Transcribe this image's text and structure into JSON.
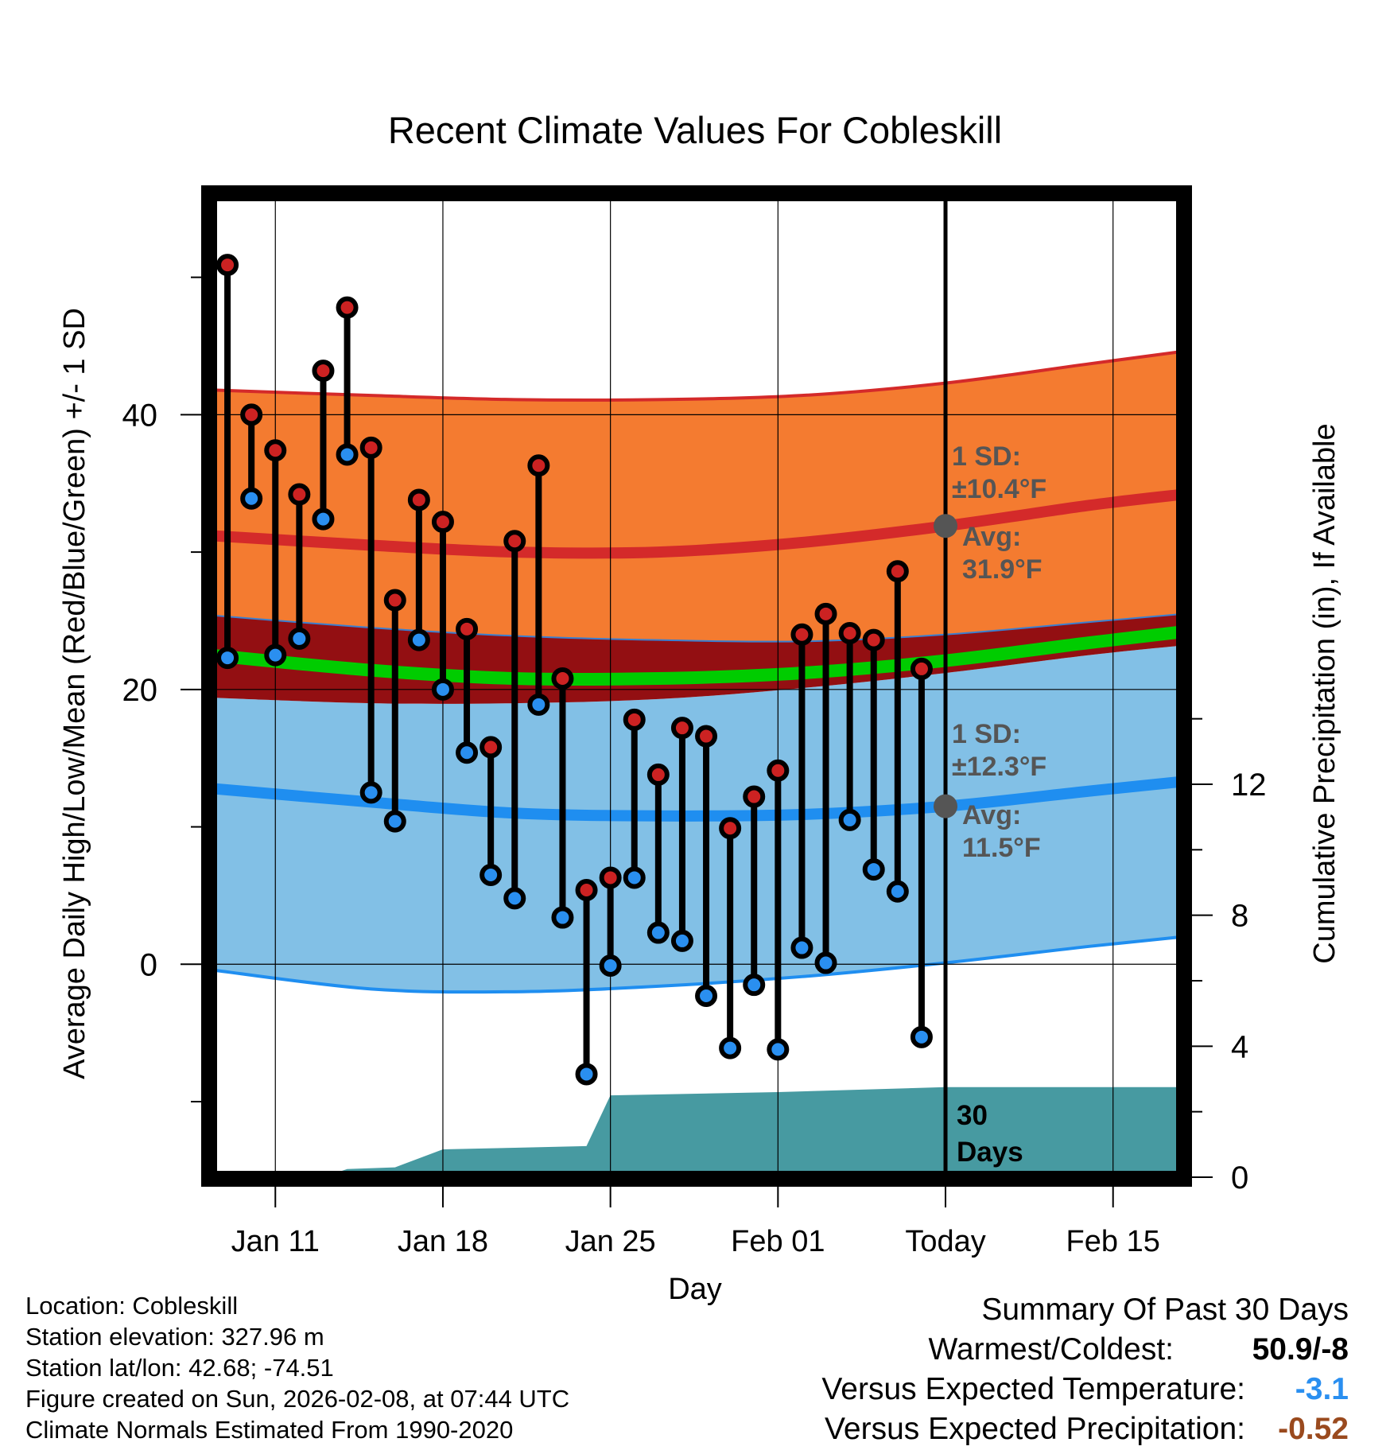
{
  "chart_data": {
    "type": "line",
    "title": "Recent Climate Values For Cobleskill",
    "xlabel": "Day",
    "ylabel": "Average Daily High/Low/Mean (Red/Blue/Green) +/- 1 SD",
    "y2label": "Cumulative Precipitation (in), If Available",
    "ylim": [
      -15.5,
      56
    ],
    "y2lim": [
      0,
      30
    ],
    "y_ticks": [
      "0",
      "20",
      "40"
    ],
    "y2_ticks": [
      "0",
      "4",
      "8",
      "12"
    ],
    "x_ticks": [
      "Jan 11",
      "Jan 18",
      "Jan 25",
      "Feb 01",
      "Today",
      "Feb 15"
    ],
    "x_tick_days": [
      0,
      7,
      14,
      21,
      28,
      35
    ],
    "xlim": [
      -2.7,
      37.9
    ],
    "normals": {
      "days": [
        -2.7,
        4,
        10,
        16,
        22,
        28,
        34,
        37.9
      ],
      "high_plus_sd": [
        41.8,
        41.4,
        41.1,
        41.1,
        41.4,
        42.3,
        43.7,
        44.6
      ],
      "high_mean": [
        31.2,
        30.5,
        30.0,
        30.0,
        30.7,
        31.9,
        33.4,
        34.2
      ],
      "high_minus_sd": [
        25.4,
        24.5,
        23.9,
        23.6,
        23.5,
        24.0,
        24.9,
        25.5
      ],
      "mean": [
        22.5,
        21.4,
        20.8,
        20.8,
        21.2,
        22.1,
        23.4,
        24.2
      ],
      "low_plus_sd": [
        19.4,
        19.0,
        19.0,
        19.3,
        20.1,
        21.2,
        22.5,
        23.2
      ],
      "low_mean": [
        12.8,
        11.8,
        11.0,
        10.8,
        10.9,
        11.5,
        12.6,
        13.3
      ],
      "low_minus_sd": [
        -0.4,
        -1.8,
        -2.0,
        -1.6,
        -0.9,
        0.1,
        1.3,
        2.0
      ]
    },
    "series": [
      {
        "name": "High",
        "color": "#cc2222",
        "x": [
          -2,
          -1,
          0,
          1,
          2,
          3,
          4,
          5,
          6,
          7,
          8,
          9,
          10,
          11,
          12,
          13,
          14,
          15,
          16,
          17,
          18,
          19,
          20,
          21,
          22,
          23,
          24,
          25,
          26,
          27
        ],
        "values": [
          50.9,
          40.0,
          37.4,
          34.2,
          43.2,
          47.8,
          37.6,
          26.5,
          33.8,
          32.2,
          24.4,
          15.8,
          30.8,
          36.3,
          20.8,
          5.4,
          6.3,
          17.8,
          13.8,
          17.2,
          16.6,
          9.9,
          12.2,
          14.1,
          24.0,
          25.5,
          24.1,
          23.6,
          28.6,
          21.5
        ]
      },
      {
        "name": "Low",
        "color": "#2a8ff0",
        "x": [
          -2,
          -1,
          0,
          1,
          2,
          3,
          4,
          5,
          6,
          7,
          8,
          9,
          10,
          11,
          12,
          13,
          14,
          15,
          16,
          17,
          18,
          19,
          20,
          21,
          22,
          23,
          24,
          25,
          26,
          27
        ],
        "values": [
          22.3,
          33.9,
          22.5,
          23.7,
          32.4,
          37.1,
          12.5,
          10.4,
          23.6,
          20.0,
          15.4,
          6.5,
          4.8,
          18.9,
          3.4,
          -8.0,
          -0.1,
          6.3,
          2.3,
          1.7,
          -2.3,
          -6.1,
          -1.5,
          -6.2,
          1.2,
          0.1,
          10.5,
          6.9,
          5.3,
          -5.3
        ]
      },
      {
        "name": "Cumulative Precipitation",
        "color": "#479aa1",
        "x": [
          -2.7,
          1,
          2,
          3,
          5,
          7,
          10,
          13,
          14,
          21,
          28,
          37.9
        ],
        "values": [
          0,
          0,
          0,
          0.25,
          0.3,
          0.85,
          0.9,
          0.95,
          2.5,
          2.6,
          2.75,
          2.75
        ]
      }
    ],
    "annotations": {
      "high_sd_label": "1 SD:",
      "high_sd_value": "±10.4°F",
      "high_avg_label": "Avg:",
      "high_avg_value": "31.9°F",
      "low_sd_label": "1 SD:",
      "low_sd_value": "±12.3°F",
      "low_avg_label": "Avg:",
      "low_avg_value": "11.5°F",
      "days_label_1": "30",
      "days_label_2": "Days"
    }
  },
  "footer": {
    "location": "Location: Cobleskill",
    "elevation": "Station elevation: 327.96 m",
    "latlon": "Station lat/lon: 42.68; -74.51",
    "created": "Figure created on Sun, 2026-02-08, at 07:44 UTC",
    "normals": "Climate Normals Estimated From 1990-2020"
  },
  "summary": {
    "title": "Summary Of Past 30 Days",
    "warmest_label": "Warmest/Coldest:",
    "warmest_value": "50.9/-8",
    "temp_label": "Versus Expected Temperature:",
    "temp_value": "-3.1",
    "precip_label": "Versus Expected Precipitation:",
    "precip_value": "-0.52"
  },
  "colors": {
    "high_band": "#f47b30",
    "high_line": "#d42a2a",
    "overlap": "#930f12",
    "mean_band": "#00cc00",
    "low_band": "#82c0e6",
    "low_line": "#1f8ef0",
    "precip": "#479aa1",
    "dot_high": "#cc2222",
    "dot_low": "#2a8ff0",
    "annotation": "#555555"
  }
}
